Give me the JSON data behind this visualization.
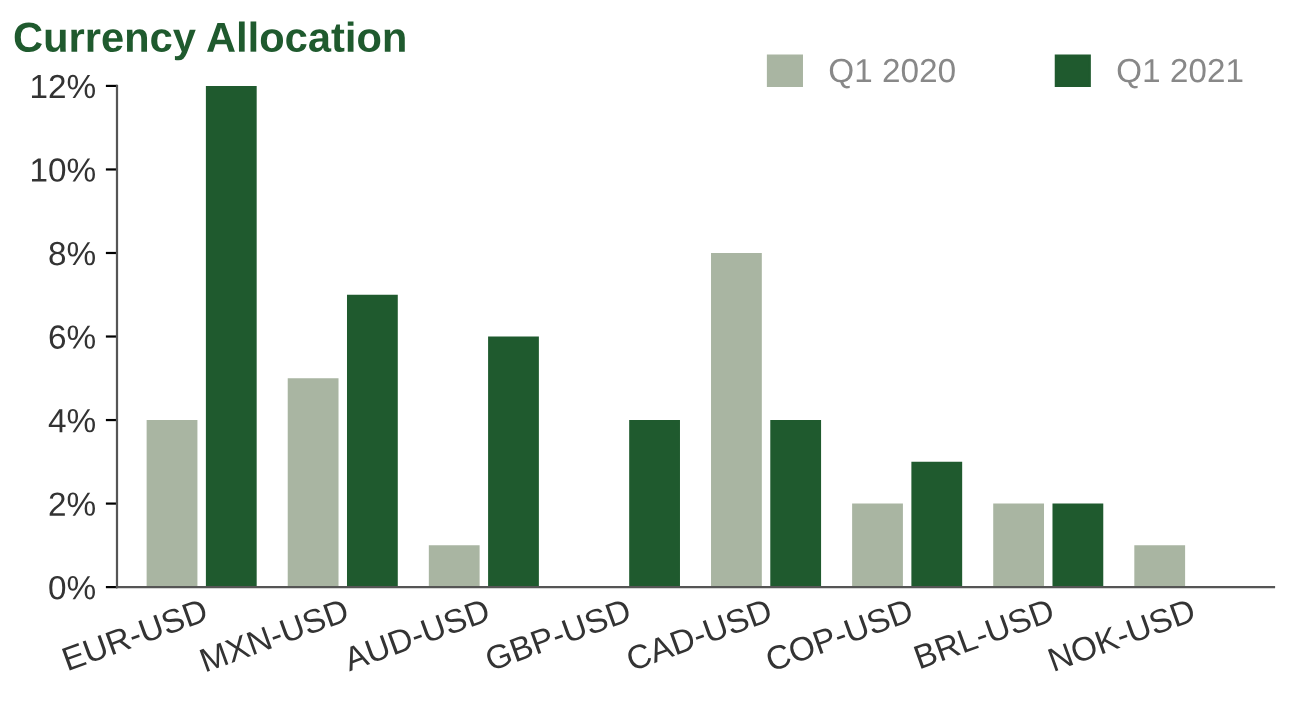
{
  "chart_data": {
    "type": "bar",
    "title": "Currency Allocation",
    "categories": [
      "EUR-USD",
      "MXN-USD",
      "AUD-USD",
      "GBP-USD",
      "CAD-USD",
      "COP-USD",
      "BRL-USD",
      "NOK-USD"
    ],
    "series": [
      {
        "name": "Q1 2020",
        "color": "#a9b5a2",
        "values": [
          4,
          5,
          1,
          0,
          8,
          2,
          2,
          1
        ]
      },
      {
        "name": "Q1 2021",
        "color": "#1f5a2e",
        "values": [
          12,
          7,
          6,
          4,
          4,
          3,
          2,
          0
        ]
      }
    ],
    "ylim": [
      0,
      12
    ],
    "yticks": [
      {
        "value": 0,
        "label": "0%"
      },
      {
        "value": 2,
        "label": "2%"
      },
      {
        "value": 4,
        "label": "4%"
      },
      {
        "value": 6,
        "label": "6%"
      },
      {
        "value": 8,
        "label": "8%"
      },
      {
        "value": 10,
        "label": "10%"
      },
      {
        "value": 12,
        "label": "12%"
      }
    ],
    "grid": false,
    "legend": "top right"
  }
}
